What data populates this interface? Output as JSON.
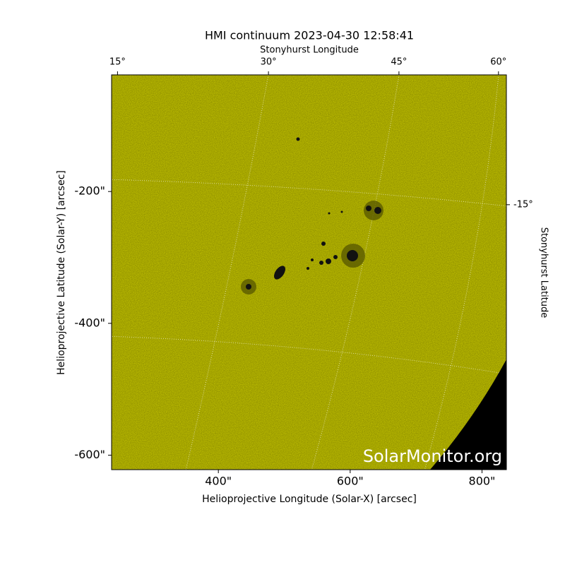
{
  "chart_data": {
    "type": "image",
    "title": "HMI continuum 2023-04-30 12:58:41",
    "xlabel": "Helioprojective Longitude (Solar-X) [arcsec]",
    "ylabel": "Helioprojective Latitude (Solar-Y) [arcsec]",
    "top_label": "Stonyhurst Longitude",
    "right_label": "Stonyhurst Latitude",
    "watermark": "SolarMonitor.org",
    "xlim": [
      238,
      837
    ],
    "ylim": [
      -622,
      -23
    ],
    "xticks": [
      {
        "value": 400,
        "label": "400\""
      },
      {
        "value": 600,
        "label": "600\""
      },
      {
        "value": 800,
        "label": "800\""
      }
    ],
    "yticks": [
      {
        "value": -200,
        "label": "-200\""
      },
      {
        "value": -400,
        "label": "-400\""
      },
      {
        "value": -600,
        "label": "-600\""
      }
    ],
    "top_ticks": [
      {
        "value": 15,
        "label": "15°",
        "x": 247
      },
      {
        "value": 30,
        "label": "30°",
        "x": 476
      },
      {
        "value": 45,
        "label": "45°",
        "x": 674
      },
      {
        "value": 60,
        "label": "60°",
        "x": 825
      }
    ],
    "right_ticks": [
      {
        "value": -15,
        "label": "-15°",
        "y": -220
      }
    ],
    "color": "#c9c900"
  }
}
